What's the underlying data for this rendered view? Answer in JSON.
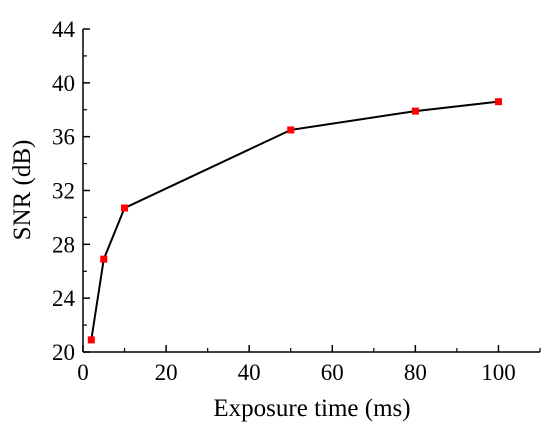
{
  "chart_data": {
    "type": "line",
    "title": "",
    "xlabel": "Exposure time (ms)",
    "ylabel": "SNR (dB)",
    "xlim": [
      0,
      110
    ],
    "ylim": [
      20,
      44
    ],
    "xticks": [
      0,
      20,
      40,
      60,
      80,
      100
    ],
    "yticks": [
      20,
      24,
      28,
      32,
      36,
      40,
      44
    ],
    "xtick_labels": [
      "0",
      "20",
      "40",
      "60",
      "80",
      "100"
    ],
    "ytick_labels": [
      "20",
      "24",
      "28",
      "32",
      "36",
      "40",
      "44"
    ],
    "grid": false,
    "legend": "none",
    "series": [
      {
        "x": [
          2,
          5,
          10,
          50,
          80,
          100
        ],
        "y": [
          20.9,
          26.9,
          30.7,
          36.5,
          37.9,
          38.6
        ],
        "line_color": "#000000",
        "marker": "square",
        "marker_color": "#ff0000"
      }
    ]
  }
}
